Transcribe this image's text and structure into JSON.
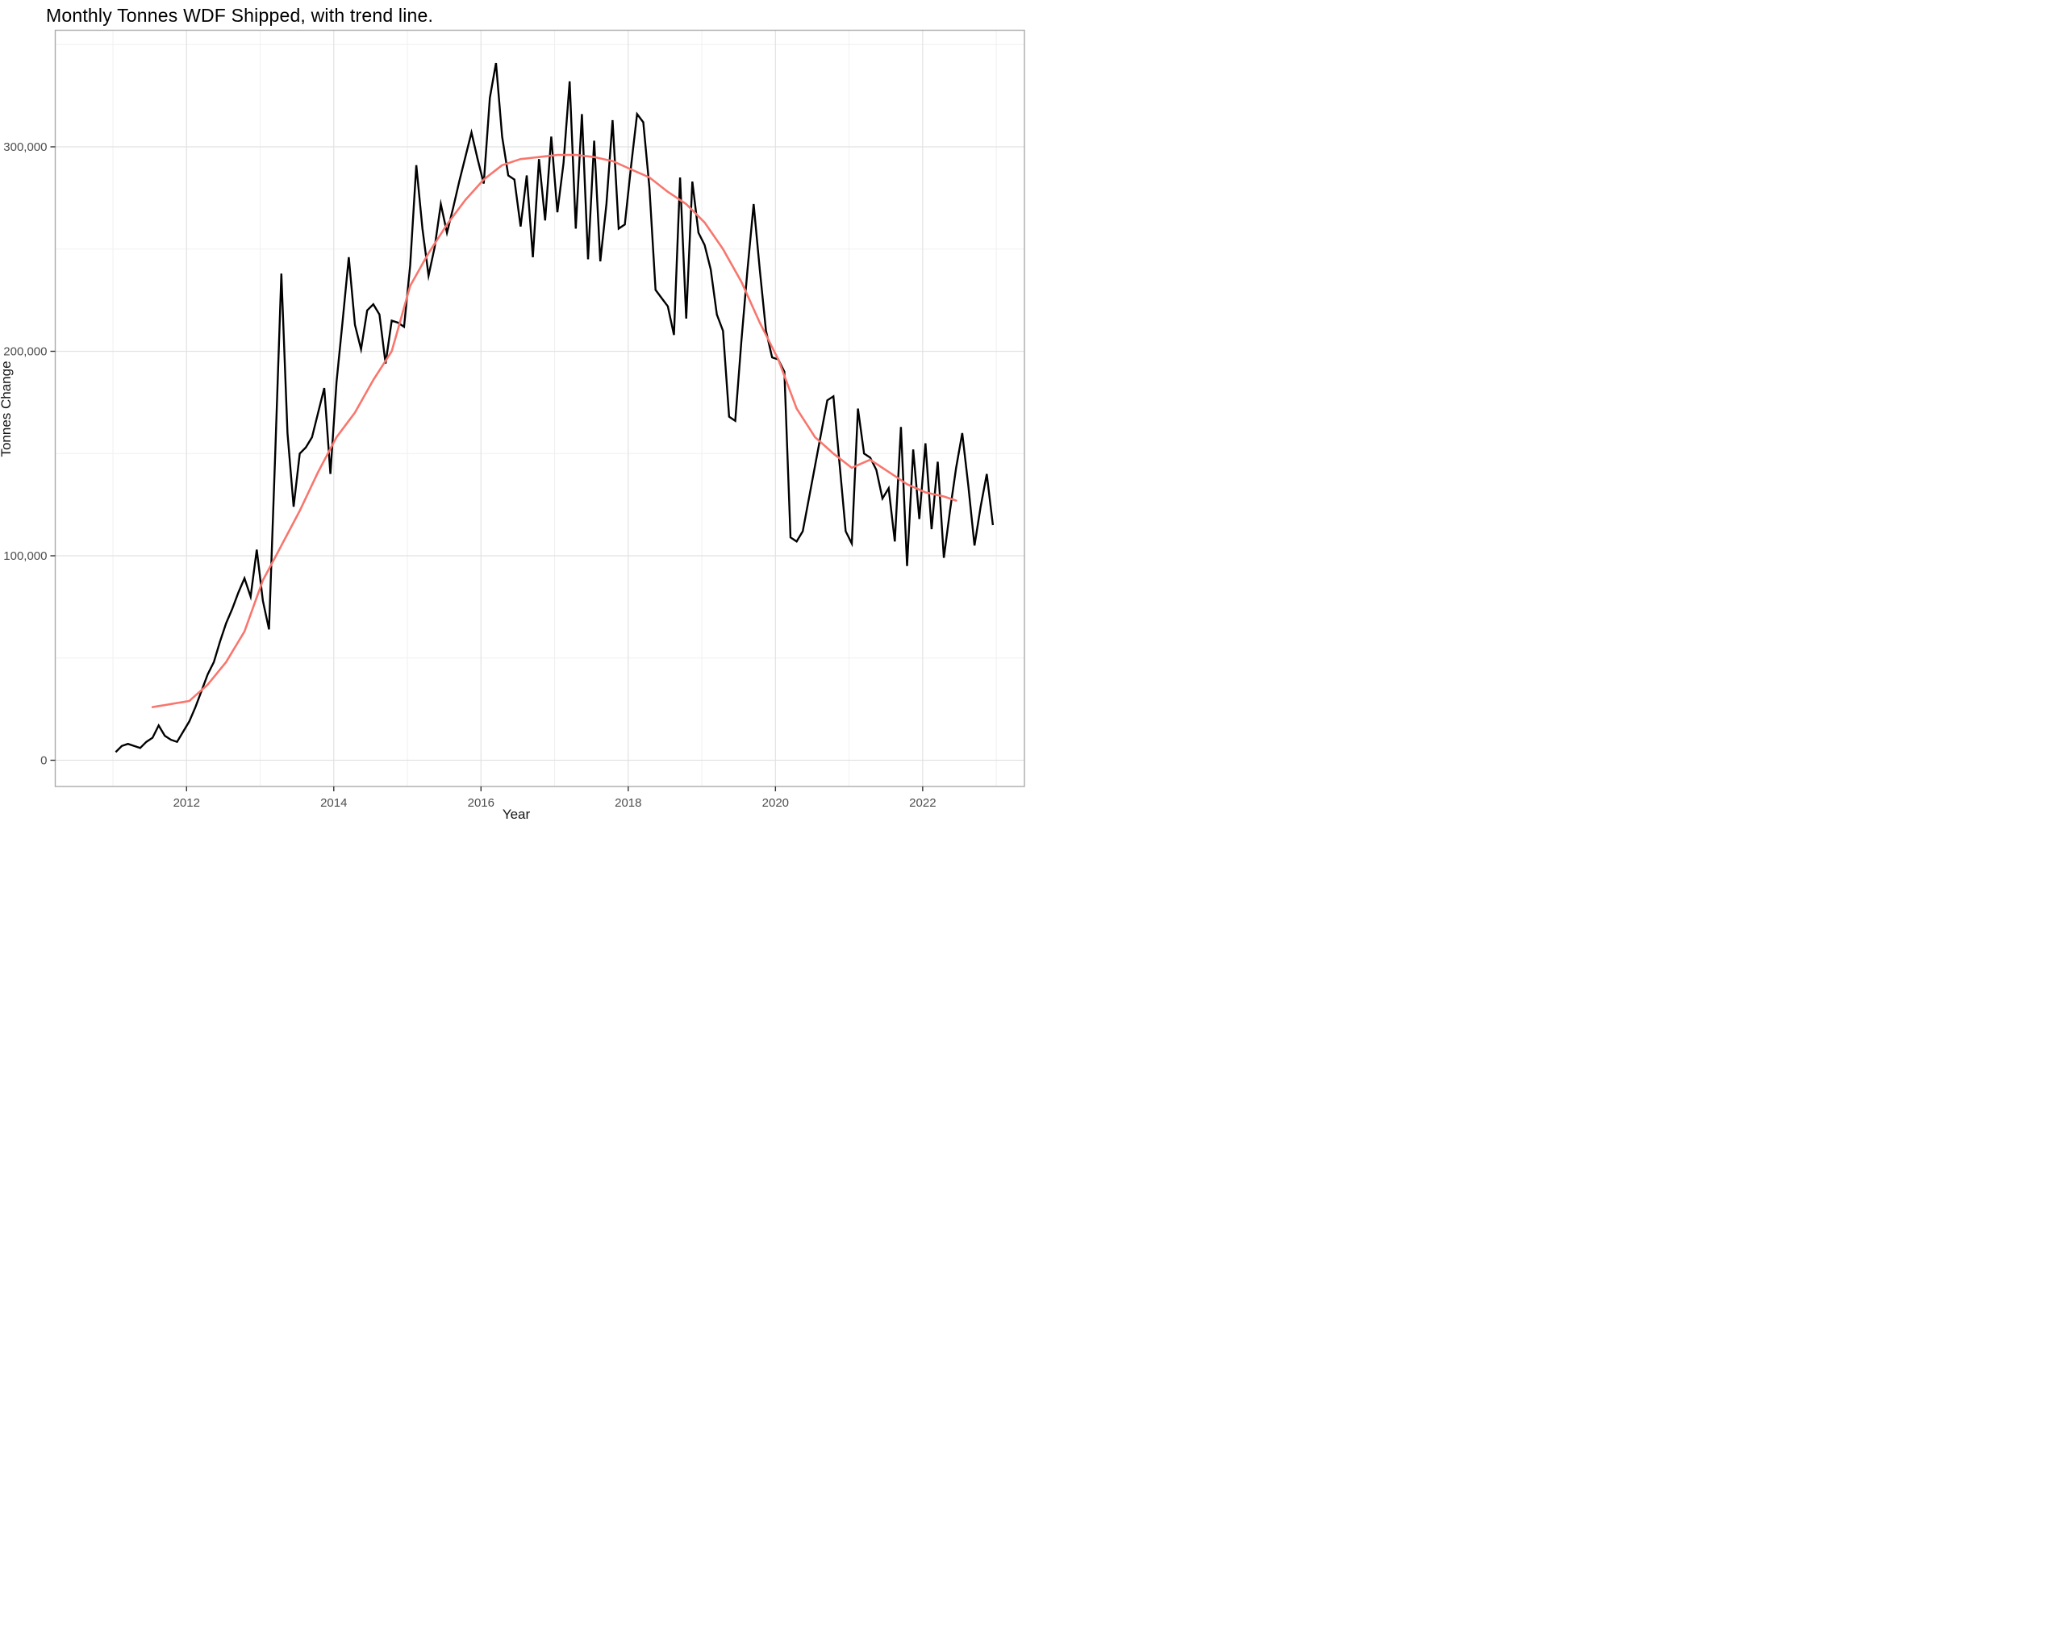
{
  "title": "Monthly Tonnes WDF Shipped, with trend line.",
  "colors": {
    "series_line": "#000000",
    "trend_line": "#f8766d",
    "grid_major": "#e2e2e2",
    "grid_minor": "#f0f0f0",
    "panel_border": "#ababab",
    "tick_mark": "#333333",
    "tick_text": "#4d4d4d",
    "axis_title_text": "#141414",
    "background": "#ffffff"
  },
  "chart_data": {
    "type": "line",
    "title": "Monthly Tonnes WDF Shipped, with trend line.",
    "xlabel": "Year",
    "ylabel": "Tonnes Change",
    "x_start": "2011-01",
    "frequency": "monthly",
    "x_major_ticks": [
      2012,
      2014,
      2016,
      2018,
      2020,
      2022
    ],
    "x_minor_ticks": [
      2011,
      2013,
      2015,
      2017,
      2019,
      2021,
      2023
    ],
    "y_major_ticks": [
      0,
      100000,
      200000,
      300000
    ],
    "y_major_tick_labels": [
      "0",
      "100,000",
      "200,000",
      "300,000"
    ],
    "y_minor_ticks": [
      50000,
      150000,
      250000,
      350000
    ],
    "ylim": [
      -28000,
      357000
    ],
    "grid": true,
    "legend": "none",
    "series": [
      {
        "name": "monthly-tonnes-shipped",
        "color": "#000000",
        "values": [
          4000,
          7000,
          8000,
          7000,
          6000,
          9000,
          11000,
          17000,
          12000,
          10000,
          9000,
          14000,
          19000,
          26000,
          34000,
          42000,
          48000,
          58000,
          67000,
          74000,
          82000,
          89000,
          80000,
          103000,
          78000,
          64000,
          150000,
          238000,
          160000,
          124000,
          150000,
          153000,
          158000,
          170000,
          182000,
          140000,
          185000,
          215000,
          246000,
          213000,
          201000,
          220000,
          223000,
          218000,
          194000,
          215000,
          214000,
          212000,
          242000,
          291000,
          260000,
          237000,
          251000,
          272000,
          258000,
          270000,
          283000,
          295000,
          307000,
          294000,
          282000,
          324000,
          341000,
          305000,
          286000,
          284000,
          261000,
          286000,
          246000,
          294000,
          264000,
          305000,
          268000,
          292000,
          332000,
          260000,
          316000,
          245000,
          303000,
          244000,
          272000,
          313000,
          260000,
          262000,
          290000,
          316000,
          312000,
          280000,
          230000,
          226000,
          222000,
          208000,
          285000,
          216000,
          283000,
          258000,
          252000,
          240000,
          218000,
          210000,
          168000,
          166000,
          205000,
          240000,
          272000,
          240000,
          210000,
          197000,
          196000,
          190000,
          109000,
          107000,
          112000,
          128000,
          144000,
          160000,
          176000,
          178000,
          145000,
          112000,
          106000,
          172000,
          150000,
          148000,
          142000,
          128000,
          133000,
          107000,
          163000,
          95000,
          152000,
          118000,
          155000,
          113000,
          146000,
          99000,
          122000,
          143000,
          160000,
          134000,
          105000,
          124000,
          140000,
          115000
        ]
      },
      {
        "name": "trend-line",
        "color": "#f8766d",
        "description": "smoothed 12-month trend, spans Jul 2011 - Jun 2022",
        "anchor_points_month_value": [
          [
            6,
            26000
          ],
          [
            12,
            29000
          ],
          [
            15,
            37000
          ],
          [
            18,
            48000
          ],
          [
            21,
            63000
          ],
          [
            24,
            88000
          ],
          [
            27,
            105000
          ],
          [
            30,
            122000
          ],
          [
            33,
            141000
          ],
          [
            36,
            158000
          ],
          [
            39,
            170000
          ],
          [
            42,
            186000
          ],
          [
            45,
            200000
          ],
          [
            48,
            232000
          ],
          [
            51,
            248000
          ],
          [
            54,
            262000
          ],
          [
            57,
            274000
          ],
          [
            60,
            284000
          ],
          [
            63,
            291000
          ],
          [
            66,
            294000
          ],
          [
            69,
            295000
          ],
          [
            72,
            296000
          ],
          [
            75,
            296000
          ],
          [
            78,
            295000
          ],
          [
            81,
            293000
          ],
          [
            84,
            289000
          ],
          [
            87,
            285000
          ],
          [
            90,
            278000
          ],
          [
            93,
            272000
          ],
          [
            96,
            263000
          ],
          [
            99,
            250000
          ],
          [
            102,
            234000
          ],
          [
            105,
            214000
          ],
          [
            108,
            196000
          ],
          [
            111,
            172000
          ],
          [
            114,
            158000
          ],
          [
            117,
            150000
          ],
          [
            120,
            143000
          ],
          [
            123,
            147000
          ],
          [
            126,
            141000
          ],
          [
            129,
            135000
          ],
          [
            132,
            131000
          ],
          [
            135,
            129000
          ],
          [
            137,
            127000
          ]
        ]
      }
    ]
  }
}
